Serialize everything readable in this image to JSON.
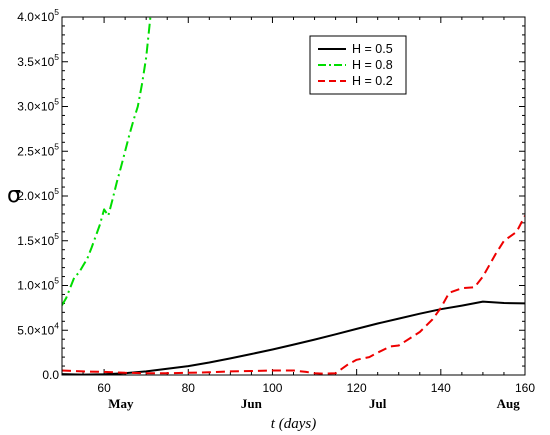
{
  "chart_data": {
    "type": "line",
    "title": "",
    "xlabel": "t (days)",
    "ylabel": "σ",
    "xlim": [
      50,
      160
    ],
    "ylim": [
      0,
      400000
    ],
    "x_ticks": [
      60,
      80,
      100,
      120,
      140,
      160
    ],
    "x_tick_labels": [
      "60",
      "80",
      "100",
      "120",
      "140",
      "160"
    ],
    "y_ticks": [
      0,
      50000,
      100000,
      150000,
      200000,
      250000,
      300000,
      350000,
      400000
    ],
    "y_tick_labels": [
      {
        "mant": "0.0",
        "exp": ""
      },
      {
        "mant": "5.0×10",
        "exp": "4"
      },
      {
        "mant": "1.0×10",
        "exp": "5"
      },
      {
        "mant": "1.5×10",
        "exp": "5"
      },
      {
        "mant": "2.0×10",
        "exp": "5"
      },
      {
        "mant": "2.5×10",
        "exp": "5"
      },
      {
        "mant": "3.0×10",
        "exp": "5"
      },
      {
        "mant": "3.5×10",
        "exp": "5"
      },
      {
        "mant": "4.0×10",
        "exp": "5"
      }
    ],
    "months": [
      {
        "label": "May",
        "x": 64
      },
      {
        "label": "Jun",
        "x": 95
      },
      {
        "label": "Jul",
        "x": 125
      },
      {
        "label": "Aug",
        "x": 156
      }
    ],
    "grid": false,
    "legend_position": "top-center",
    "series": [
      {
        "name": "H = 0.5",
        "color": "#000000",
        "dash": "solid",
        "x": [
          50,
          55,
          60,
          65,
          70,
          75,
          80,
          85,
          90,
          95,
          100,
          105,
          110,
          115,
          120,
          125,
          130,
          135,
          140,
          145,
          150,
          155,
          160
        ],
        "y": [
          1000,
          500,
          800,
          2000,
          4000,
          7000,
          10000,
          14000,
          18500,
          23500,
          28500,
          34000,
          39500,
          45500,
          51500,
          57500,
          63000,
          68500,
          73500,
          77500,
          82000,
          80500,
          80000
        ]
      },
      {
        "name": "H = 0.8",
        "color": "#00dd00",
        "dash": "dashdot",
        "x": [
          50,
          51,
          52,
          53,
          54,
          55,
          56,
          57,
          58,
          59,
          60,
          61,
          62,
          63,
          64,
          65,
          66,
          67,
          68,
          69,
          70,
          71
        ],
        "y": [
          78000,
          86000,
          98000,
          110000,
          114000,
          122000,
          130000,
          142000,
          155000,
          168000,
          185000,
          178000,
          196000,
          215000,
          232000,
          250000,
          268000,
          285000,
          300000,
          325000,
          355000,
          400000
        ]
      },
      {
        "name": "H = 0.2",
        "color": "#ee0000",
        "dash": "dashed",
        "x": [
          50,
          55,
          60,
          65,
          70,
          75,
          80,
          85,
          90,
          95,
          100,
          105,
          108,
          110,
          112,
          115,
          118,
          120,
          123,
          125,
          128,
          130,
          133,
          135,
          138,
          140,
          142,
          145,
          148,
          150,
          153,
          155,
          158,
          160
        ],
        "y": [
          5000,
          4000,
          3500,
          2500,
          2000,
          2000,
          2500,
          3000,
          4000,
          4500,
          5000,
          5000,
          3500,
          2000,
          1500,
          2000,
          12000,
          17000,
          20000,
          25000,
          32000,
          33000,
          42000,
          48000,
          62000,
          75000,
          92000,
          97000,
          98000,
          110000,
          135000,
          150000,
          160000,
          178000
        ]
      }
    ]
  }
}
